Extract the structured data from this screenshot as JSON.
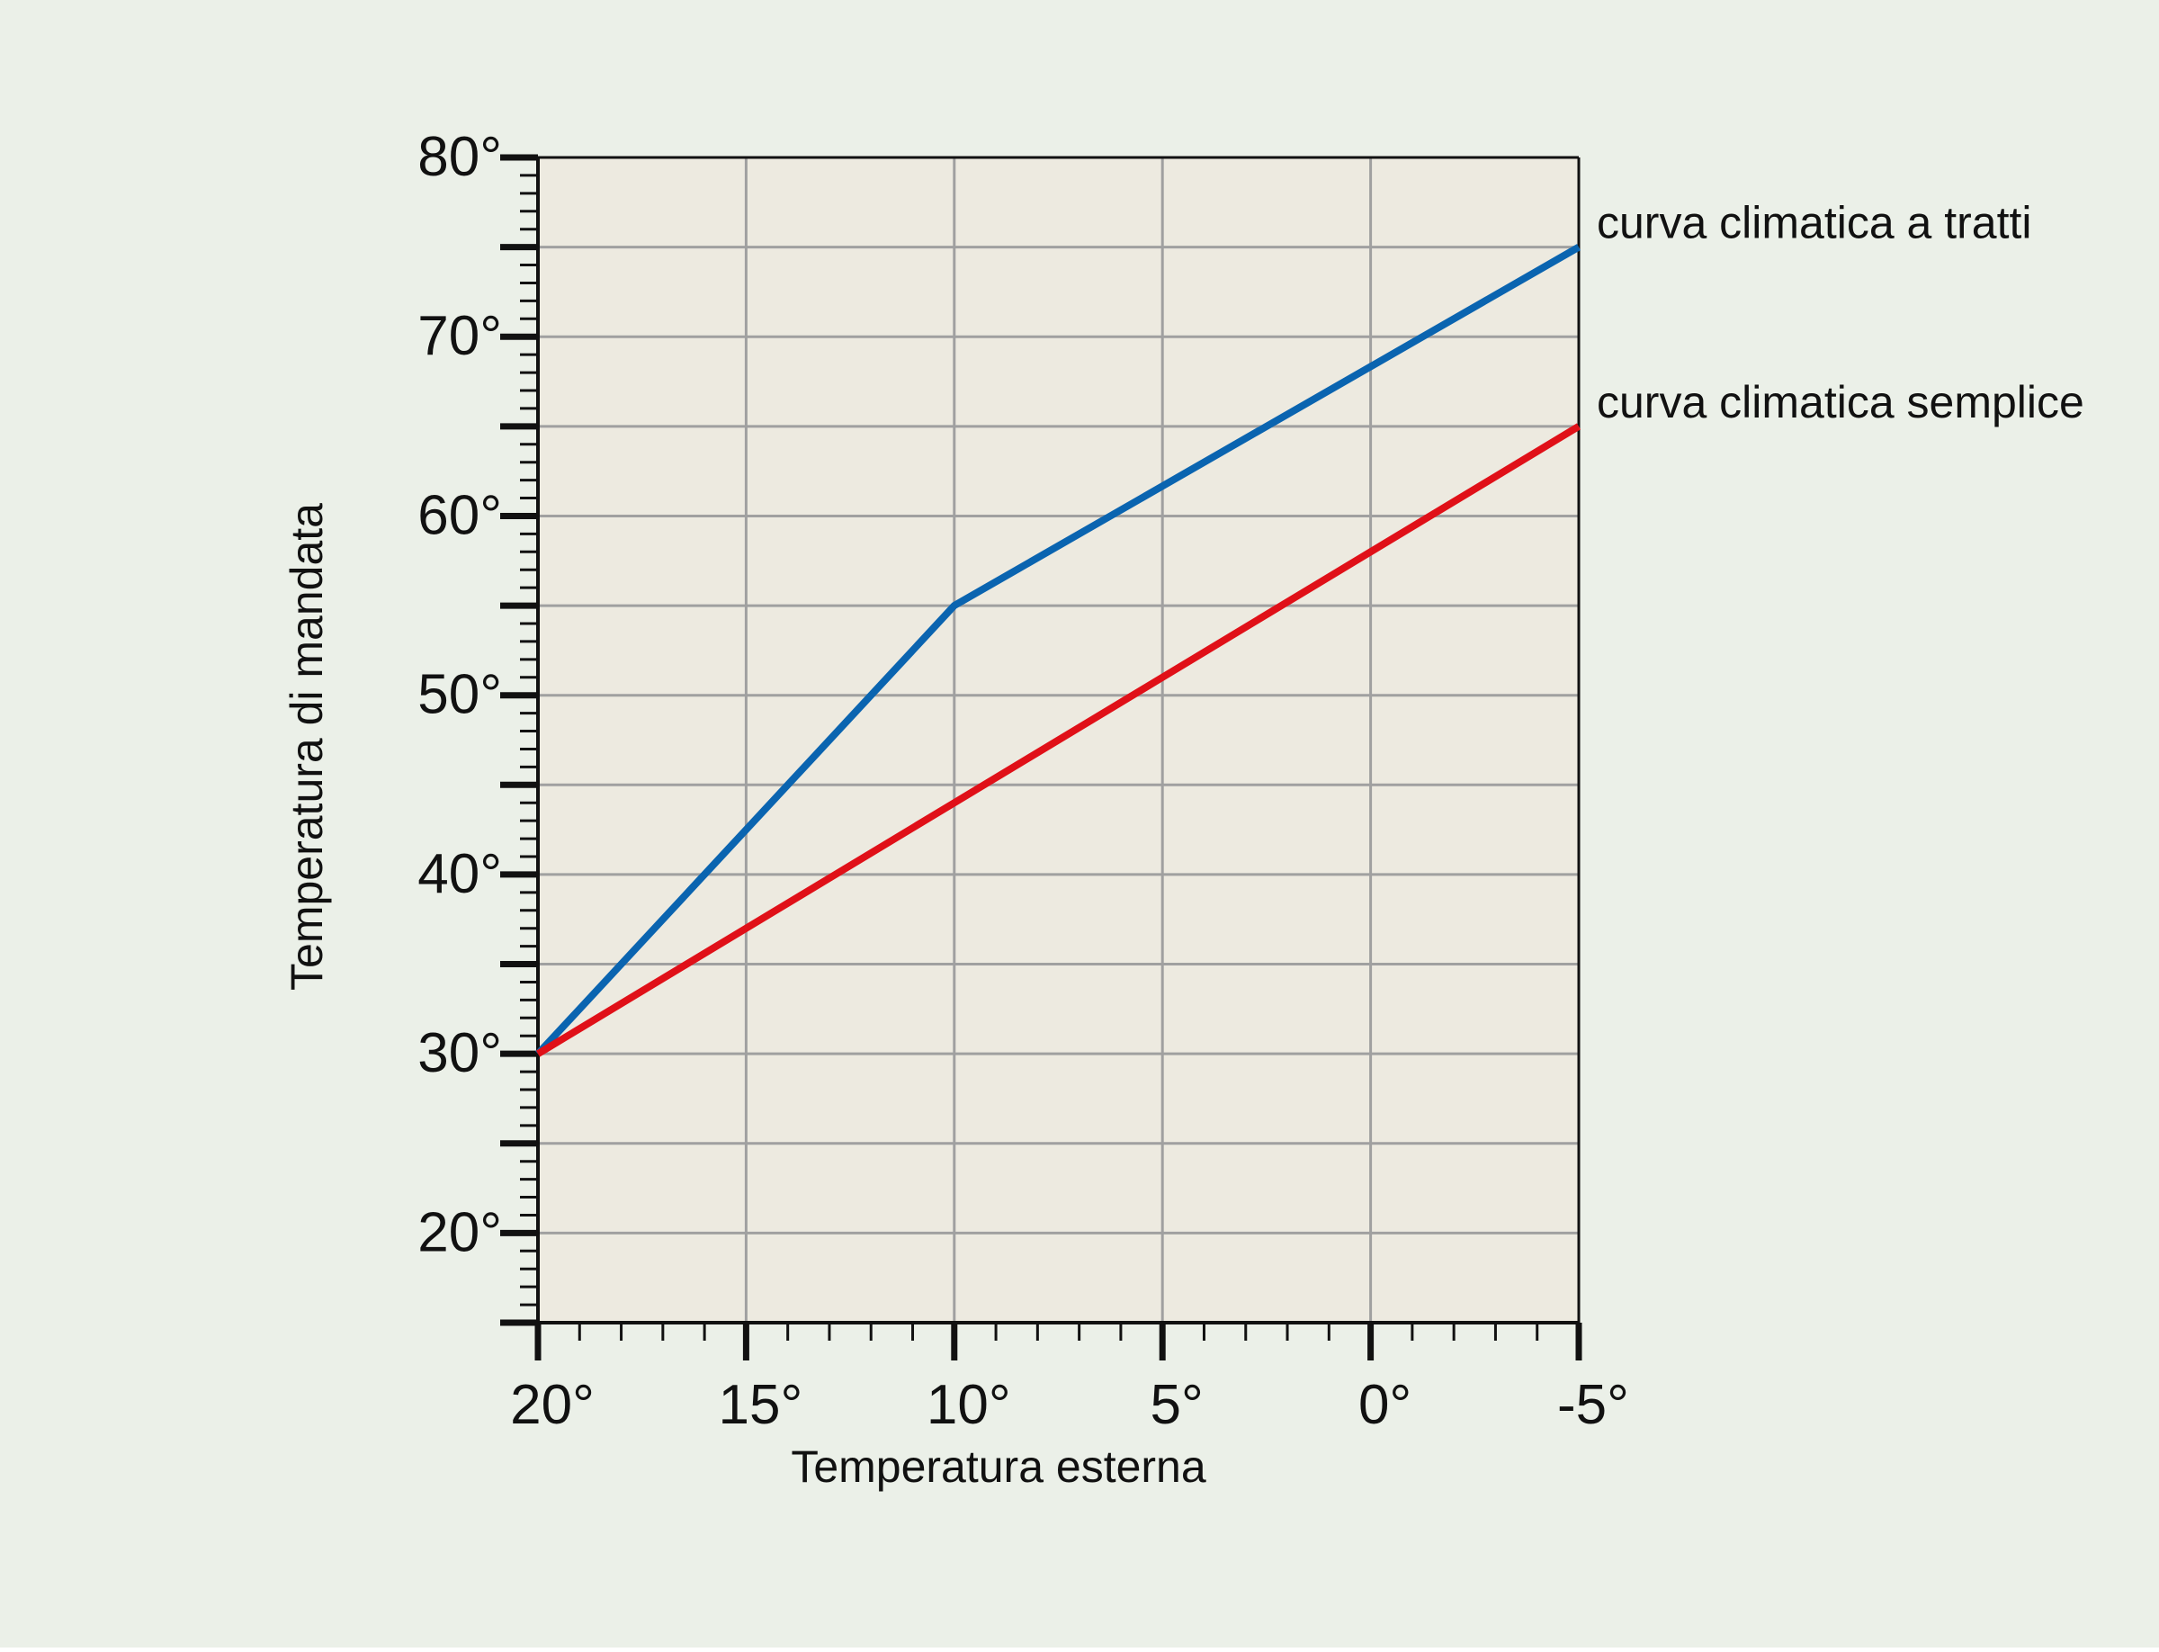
{
  "colors": {
    "page_background": "#ebf0e8",
    "plot_background": "#edeae0",
    "grid": "#a0a0a0",
    "axis": "#111111",
    "text": "#111111",
    "series_tratti": "#0a64b0",
    "series_semplice": "#e01018"
  },
  "chart_data": {
    "type": "line",
    "title": "",
    "xlabel": "Temperatura esterna",
    "ylabel": "Temperatura di mandata",
    "xlim": [
      20,
      -5
    ],
    "ylim": [
      15,
      80
    ],
    "x_reversed": true,
    "grid": true,
    "x_ticks": [
      20,
      15,
      10,
      5,
      0,
      -5
    ],
    "x_tick_labels": [
      "20°",
      "15°",
      "10°",
      "5°",
      "0°",
      "-5°"
    ],
    "y_ticks": [
      20,
      30,
      40,
      50,
      60,
      70,
      80
    ],
    "y_tick_labels": [
      "20°",
      "30°",
      "40°",
      "50°",
      "60°",
      "70°",
      "80°"
    ],
    "x_grid_step": 5,
    "y_grid_step": 5,
    "x_minor_step": 1,
    "y_minor_step": 1,
    "series": [
      {
        "name": "curva climatica a tratti",
        "color_key": "series_tratti",
        "x": [
          20,
          10,
          -5
        ],
        "y": [
          30,
          55,
          75
        ]
      },
      {
        "name": "curva climatica semplice",
        "color_key": "series_semplice",
        "x": [
          20,
          -5
        ],
        "y": [
          30,
          65
        ]
      }
    ],
    "legend_placement": "right, at line ends"
  }
}
